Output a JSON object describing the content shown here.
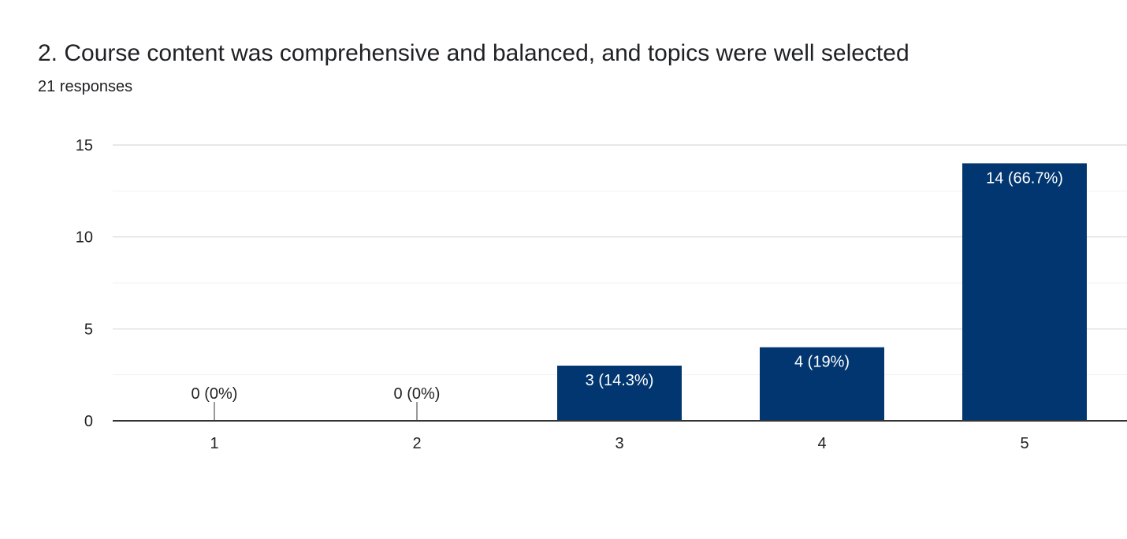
{
  "header": {
    "title": "2. Course content was comprehensive and balanced, and topics were well selected",
    "responses": "21 responses"
  },
  "colors": {
    "bar": "#023670",
    "grid": "#e0e0e0",
    "minor_grid": "#f1f1f1",
    "axis": "#333333"
  },
  "chart_data": {
    "type": "bar",
    "categories": [
      "1",
      "2",
      "3",
      "4",
      "5"
    ],
    "values": [
      0,
      0,
      3,
      4,
      14
    ],
    "labels": [
      "0 (0%)",
      "0 (0%)",
      "3 (14.3%)",
      "4 (19%)",
      "14 (66.7%)"
    ],
    "ylim": [
      0,
      15
    ],
    "yticks": [
      0,
      5,
      10,
      15
    ],
    "grid": true
  }
}
